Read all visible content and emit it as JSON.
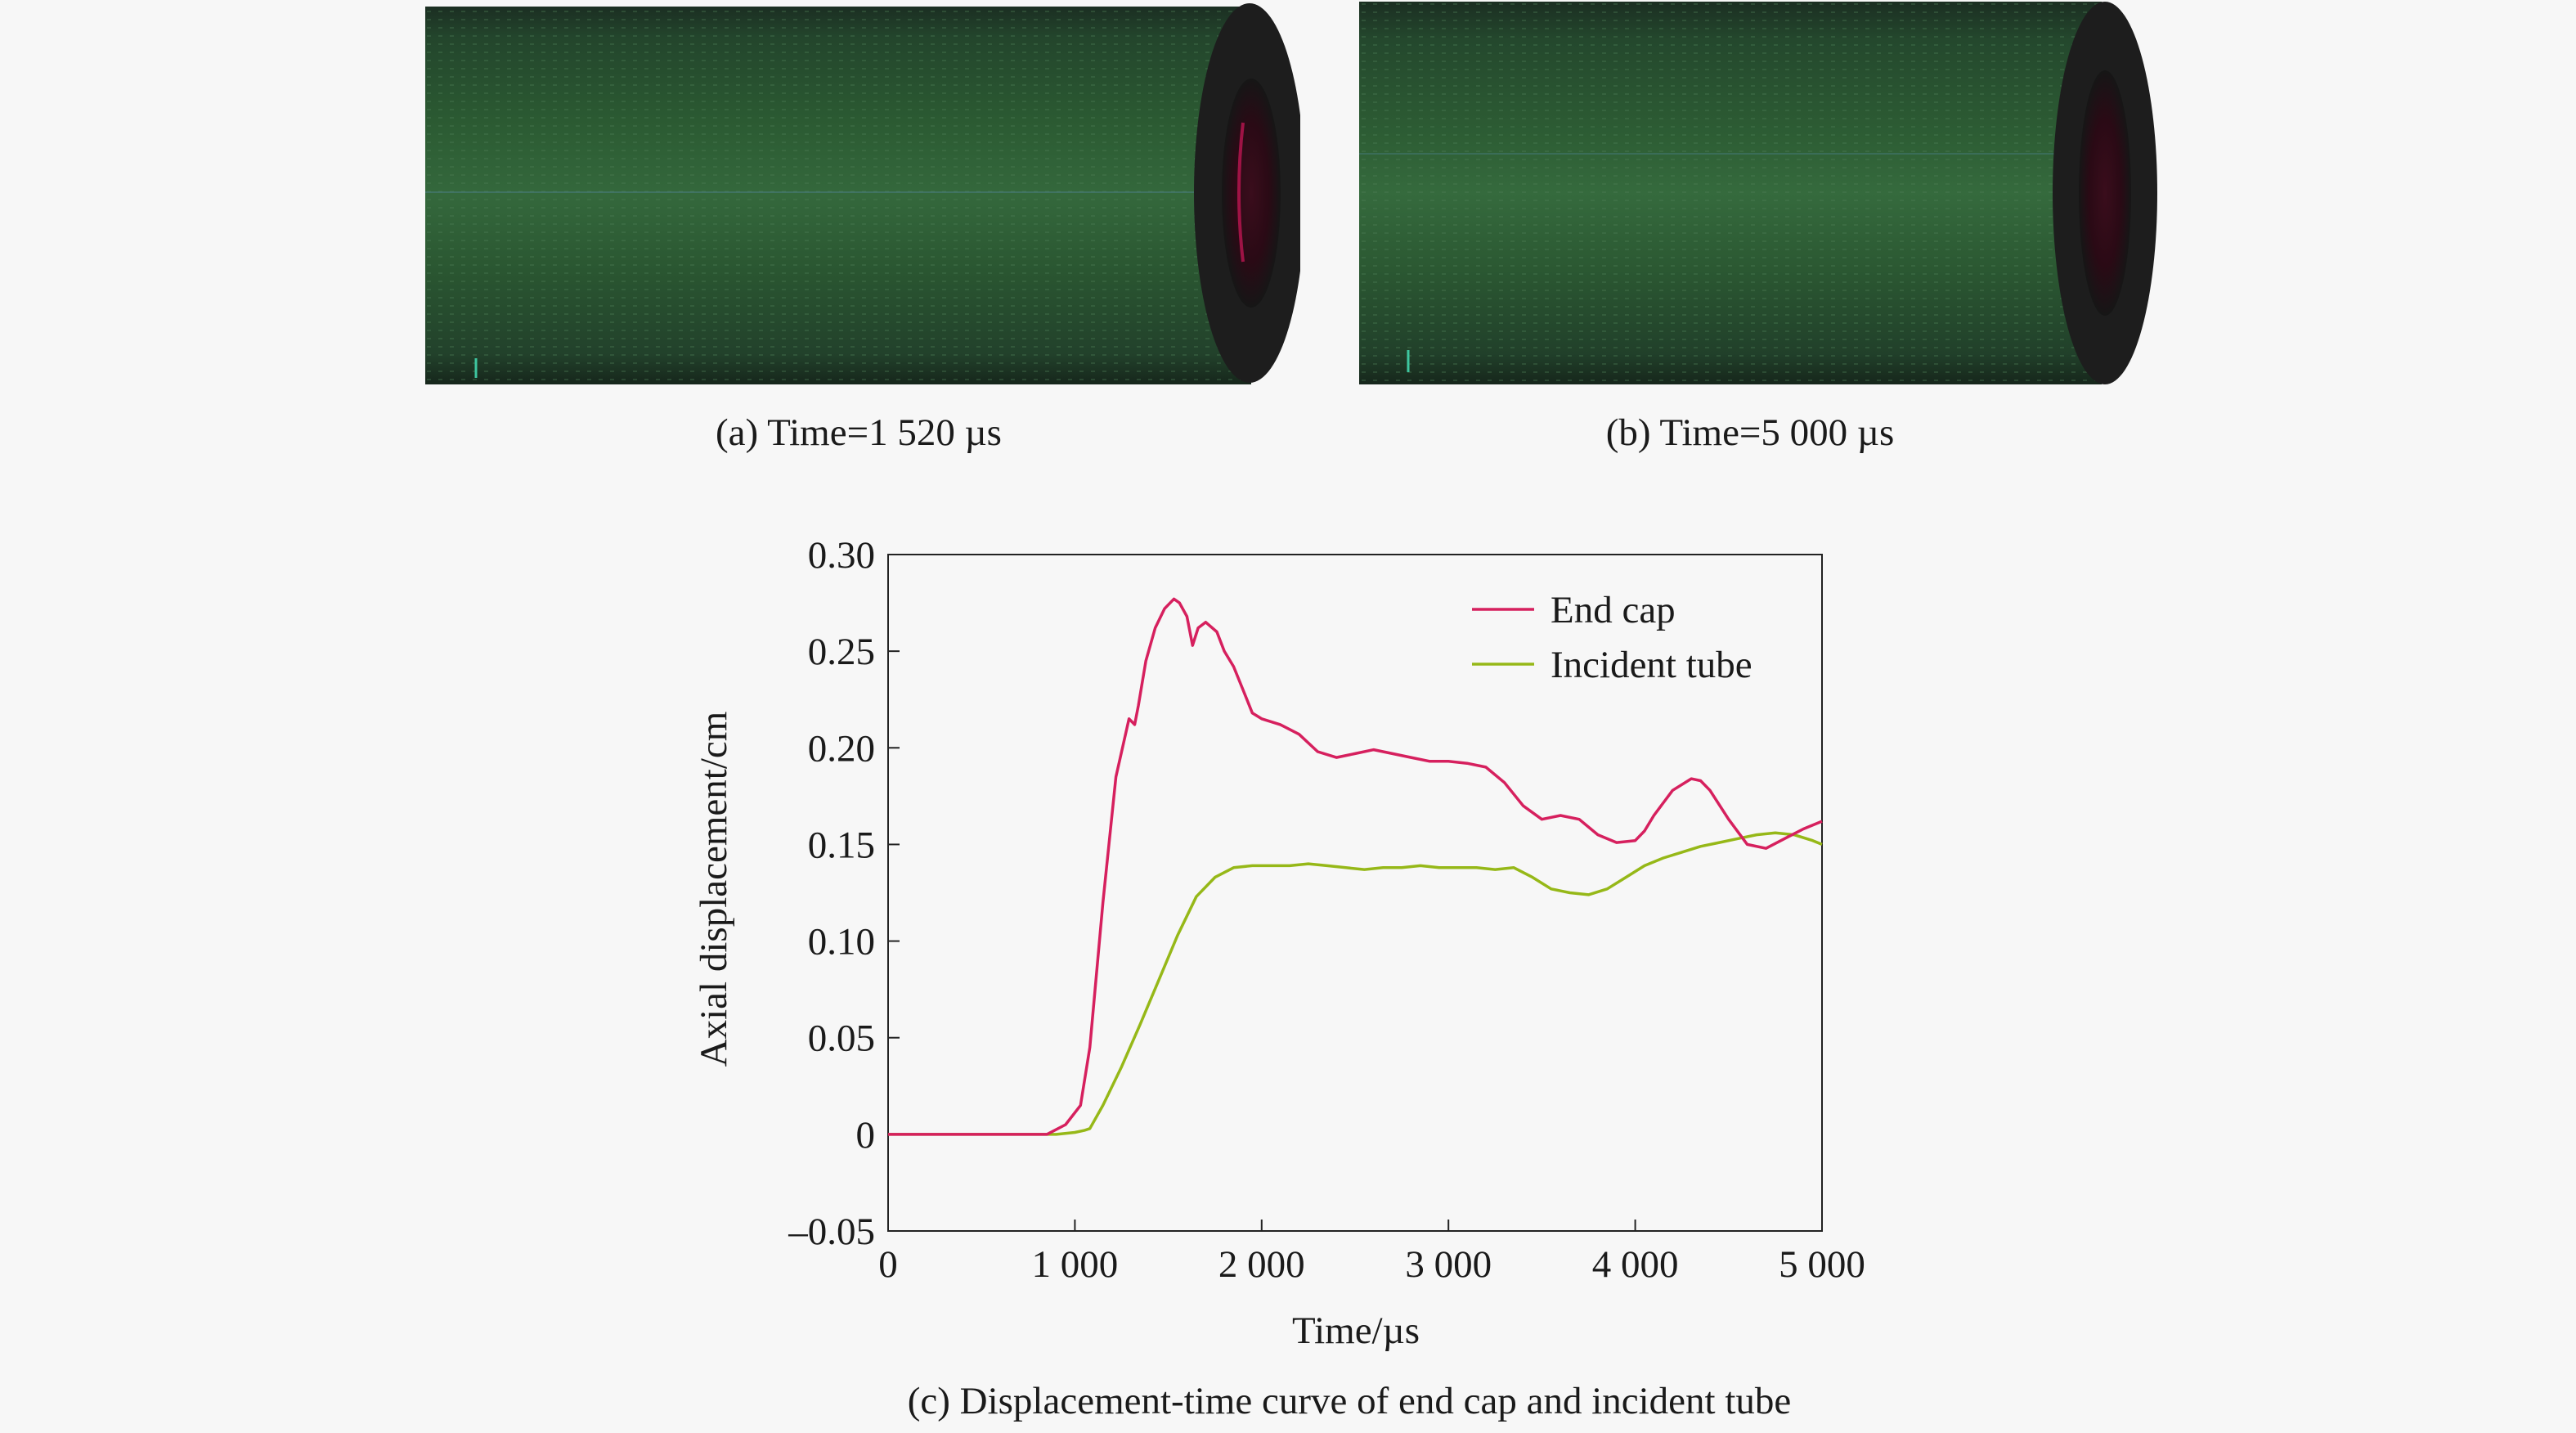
{
  "figure": {
    "panel_a": {
      "caption": "(a) Time=1 520 µs",
      "tube_color": "#244d2a",
      "cap_accent": "#d0175a"
    },
    "panel_b": {
      "caption": "(b) Time=5 000 µs",
      "tube_color": "#244d2a",
      "cap_accent": "#d0175a"
    },
    "panel_c": {
      "caption": "(c) Displacement-time curve of end cap and incident tube"
    }
  },
  "chart_data": {
    "type": "line",
    "xlabel": "Time/µs",
    "ylabel": "Axial displacement/cm",
    "xlim": [
      0,
      5000
    ],
    "ylim": [
      -0.05,
      0.3
    ],
    "x_ticks": [
      0,
      1000,
      2000,
      3000,
      4000,
      5000
    ],
    "x_tick_labels": [
      "0",
      "1 000",
      "2 000",
      "3 000",
      "4 000",
      "5 000"
    ],
    "y_ticks": [
      -0.05,
      0,
      0.05,
      0.1,
      0.15,
      0.2,
      0.25,
      0.3
    ],
    "y_tick_labels": [
      "–0.05",
      "0",
      "0.05",
      "0.10",
      "0.15",
      "0.20",
      "0.25",
      "0.30"
    ],
    "grid": false,
    "legend_position": "top-right",
    "series": [
      {
        "name": "End cap",
        "color": "#d6205e",
        "x": [
          0,
          850,
          950,
          1030,
          1080,
          1150,
          1220,
          1290,
          1320,
          1340,
          1380,
          1430,
          1480,
          1530,
          1560,
          1600,
          1630,
          1660,
          1700,
          1760,
          1800,
          1850,
          1900,
          1950,
          2000,
          2100,
          2200,
          2300,
          2400,
          2500,
          2600,
          2700,
          2800,
          2900,
          3000,
          3100,
          3200,
          3300,
          3400,
          3500,
          3600,
          3700,
          3800,
          3900,
          4000,
          4050,
          4100,
          4200,
          4300,
          4350,
          4400,
          4500,
          4600,
          4700,
          4800,
          4900,
          5000
        ],
        "y": [
          0,
          0,
          0.005,
          0.015,
          0.045,
          0.12,
          0.185,
          0.215,
          0.212,
          0.222,
          0.245,
          0.262,
          0.272,
          0.277,
          0.275,
          0.268,
          0.253,
          0.262,
          0.265,
          0.26,
          0.25,
          0.242,
          0.23,
          0.218,
          0.215,
          0.212,
          0.207,
          0.198,
          0.195,
          0.197,
          0.199,
          0.197,
          0.195,
          0.193,
          0.193,
          0.192,
          0.19,
          0.182,
          0.17,
          0.163,
          0.165,
          0.163,
          0.155,
          0.151,
          0.152,
          0.157,
          0.165,
          0.178,
          0.184,
          0.183,
          0.178,
          0.163,
          0.15,
          0.148,
          0.153,
          0.158,
          0.162
        ]
      },
      {
        "name": "Incident tube",
        "color": "#96b818",
        "x": [
          0,
          900,
          1000,
          1050,
          1080,
          1150,
          1250,
          1350,
          1450,
          1550,
          1650,
          1750,
          1850,
          1950,
          2050,
          2150,
          2250,
          2350,
          2450,
          2550,
          2650,
          2750,
          2850,
          2950,
          3050,
          3150,
          3250,
          3350,
          3450,
          3550,
          3650,
          3750,
          3850,
          3950,
          4050,
          4150,
          4250,
          4350,
          4450,
          4550,
          4650,
          4750,
          4850,
          4950,
          5000
        ],
        "y": [
          0,
          0,
          0.001,
          0.002,
          0.003,
          0.015,
          0.035,
          0.057,
          0.08,
          0.103,
          0.123,
          0.133,
          0.138,
          0.139,
          0.139,
          0.139,
          0.14,
          0.139,
          0.138,
          0.137,
          0.138,
          0.138,
          0.139,
          0.138,
          0.138,
          0.138,
          0.137,
          0.138,
          0.133,
          0.127,
          0.125,
          0.124,
          0.127,
          0.133,
          0.139,
          0.143,
          0.146,
          0.149,
          0.151,
          0.153,
          0.155,
          0.156,
          0.155,
          0.152,
          0.15
        ]
      }
    ]
  }
}
